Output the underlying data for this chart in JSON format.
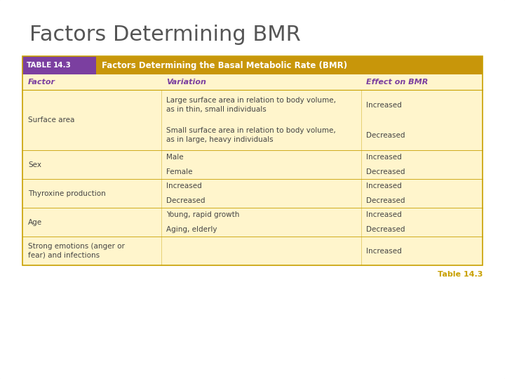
{
  "title": "Factors Determining BMR",
  "title_color": "#555555",
  "table_header_text": "Factors Determining the Basal Metabolic Rate (BMR)",
  "col_headers": [
    "Factor",
    "Variation",
    "Effect on BMR"
  ],
  "purple_color": "#7B3FA0",
  "gold_header_bg": "#C8960A",
  "purple_bg": "#7B3FA0",
  "light_yellow_bg": "#FFF5CC",
  "border_color": "#C8A000",
  "text_color": "#444444",
  "rows": [
    {
      "factor": "Surface area",
      "variations": [
        "Large surface area in relation to body volume,\nas in thin, small individuals",
        "Small surface area in relation to body volume,\nas in large, heavy individuals"
      ],
      "effects": [
        "Increased",
        "Decreased"
      ]
    },
    {
      "factor": "Sex",
      "variations": [
        "Male",
        "Female"
      ],
      "effects": [
        "Increased",
        "Decreased"
      ]
    },
    {
      "factor": "Thyroxine production",
      "variations": [
        "Increased",
        "Decreased"
      ],
      "effects": [
        "Increased",
        "Decreased"
      ]
    },
    {
      "factor": "Age",
      "variations": [
        "Young, rapid growth",
        "Aging, elderly"
      ],
      "effects": [
        "Increased",
        "Decreased"
      ]
    },
    {
      "factor": "Strong emotions (anger or\nfear) and infections",
      "variations": [
        ""
      ],
      "effects": [
        "Increased"
      ]
    }
  ],
  "footer_text": "Table 14.3",
  "footer_color": "#C8A000",
  "slide_bg": "#FFFFFF"
}
